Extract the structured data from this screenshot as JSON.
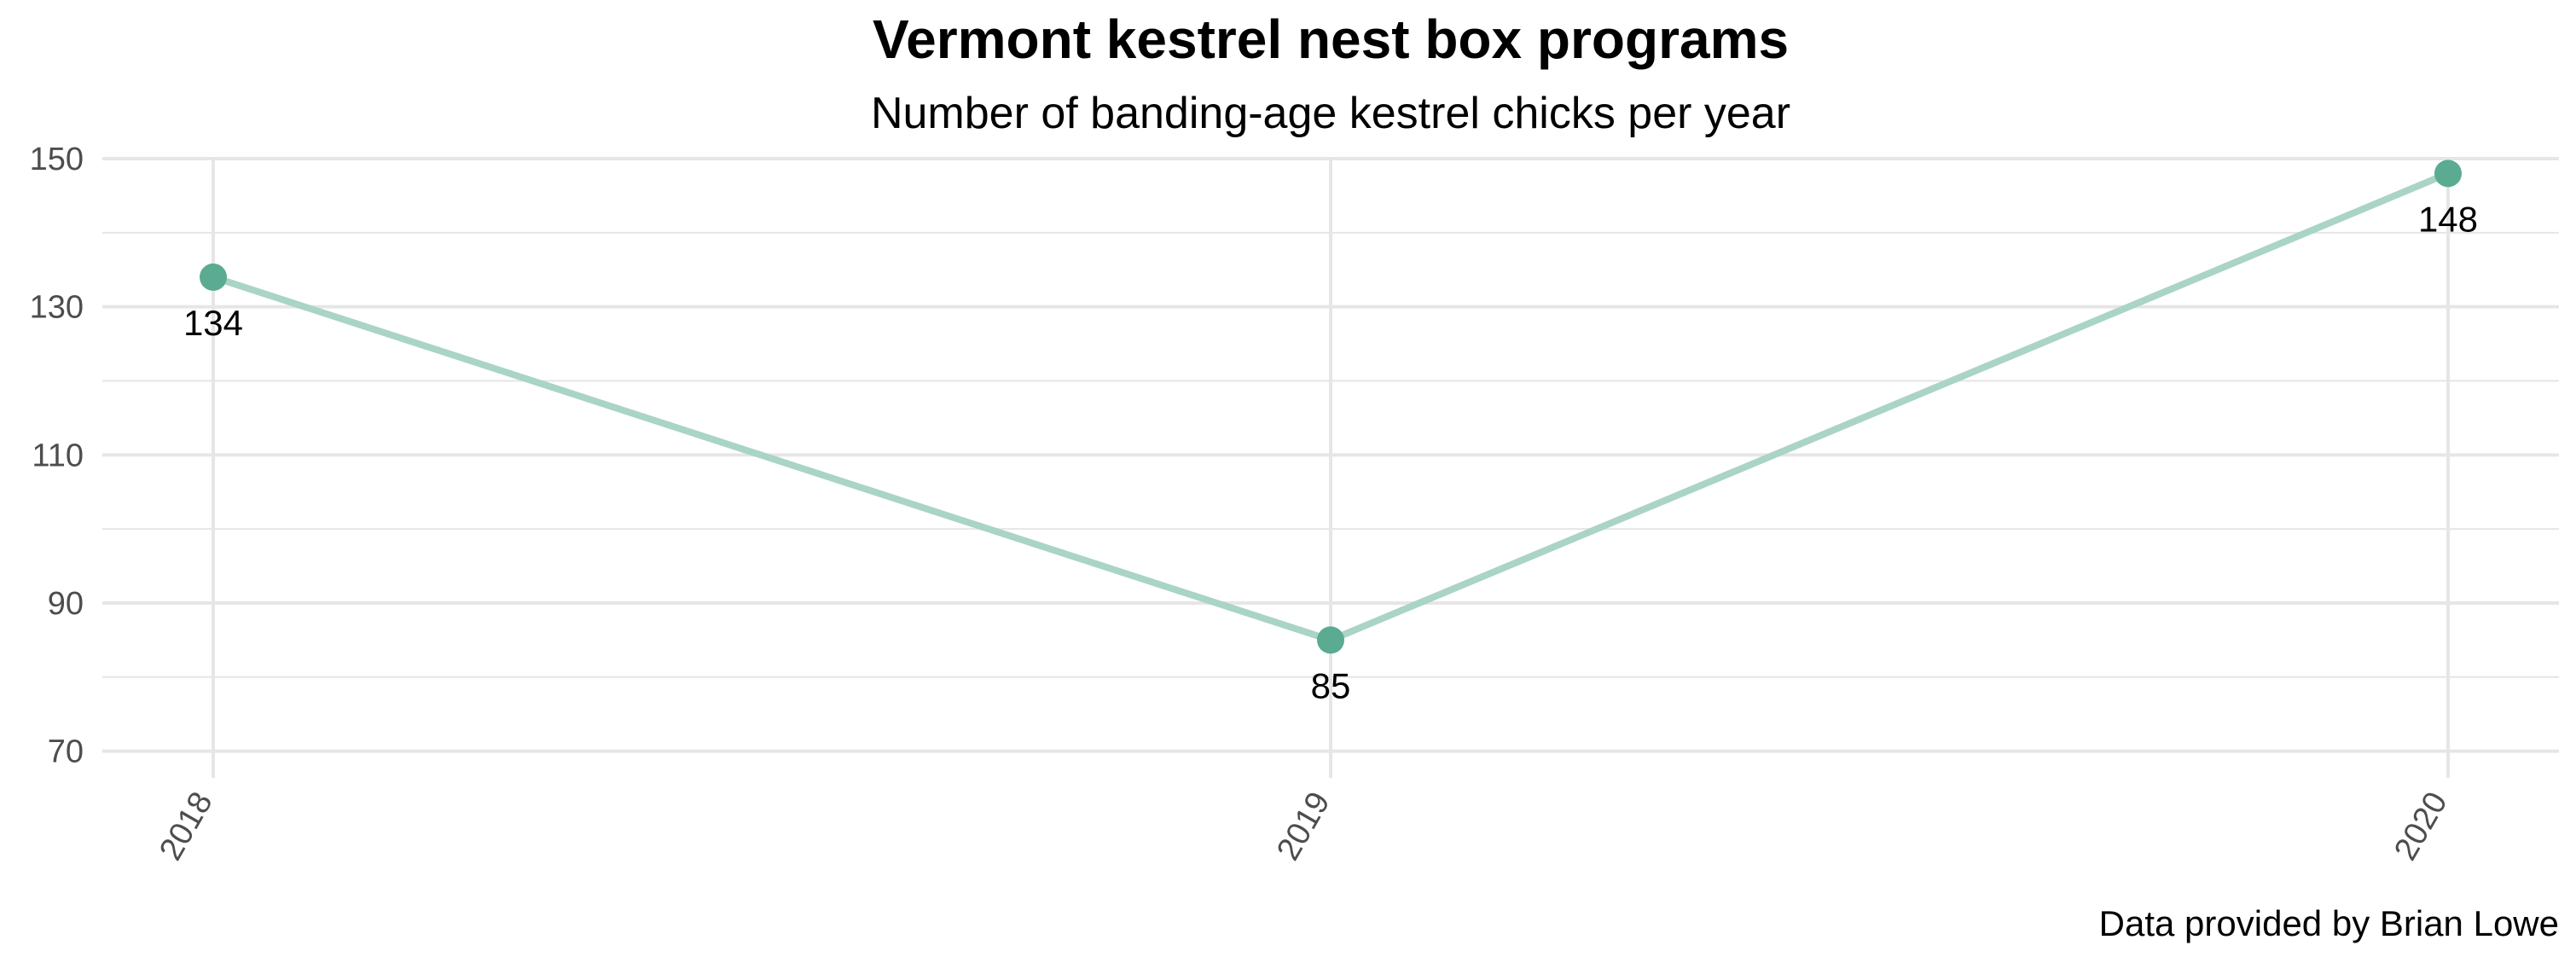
{
  "chart_data": {
    "type": "line",
    "title": "Vermont kestrel nest box programs",
    "subtitle": "Number of banding-age kestrel chicks per year",
    "caption": "Data provided by Brian Lowe",
    "xlabel": "",
    "ylabel": "",
    "categories": [
      "2018",
      "2019",
      "2020"
    ],
    "series": [
      {
        "values": [
          134,
          85,
          148
        ]
      }
    ],
    "data_labels": [
      "134",
      "85",
      "148"
    ],
    "y_ticks": [
      "70",
      "90",
      "110",
      "130",
      "150"
    ],
    "ylim": [
      68,
      150
    ],
    "grid": true,
    "legend": "none",
    "colors": {
      "line": "#a9d4c6",
      "point": "#5aab92",
      "grid": "#e6e6e6",
      "tick_text": "#4d4d4d"
    }
  }
}
